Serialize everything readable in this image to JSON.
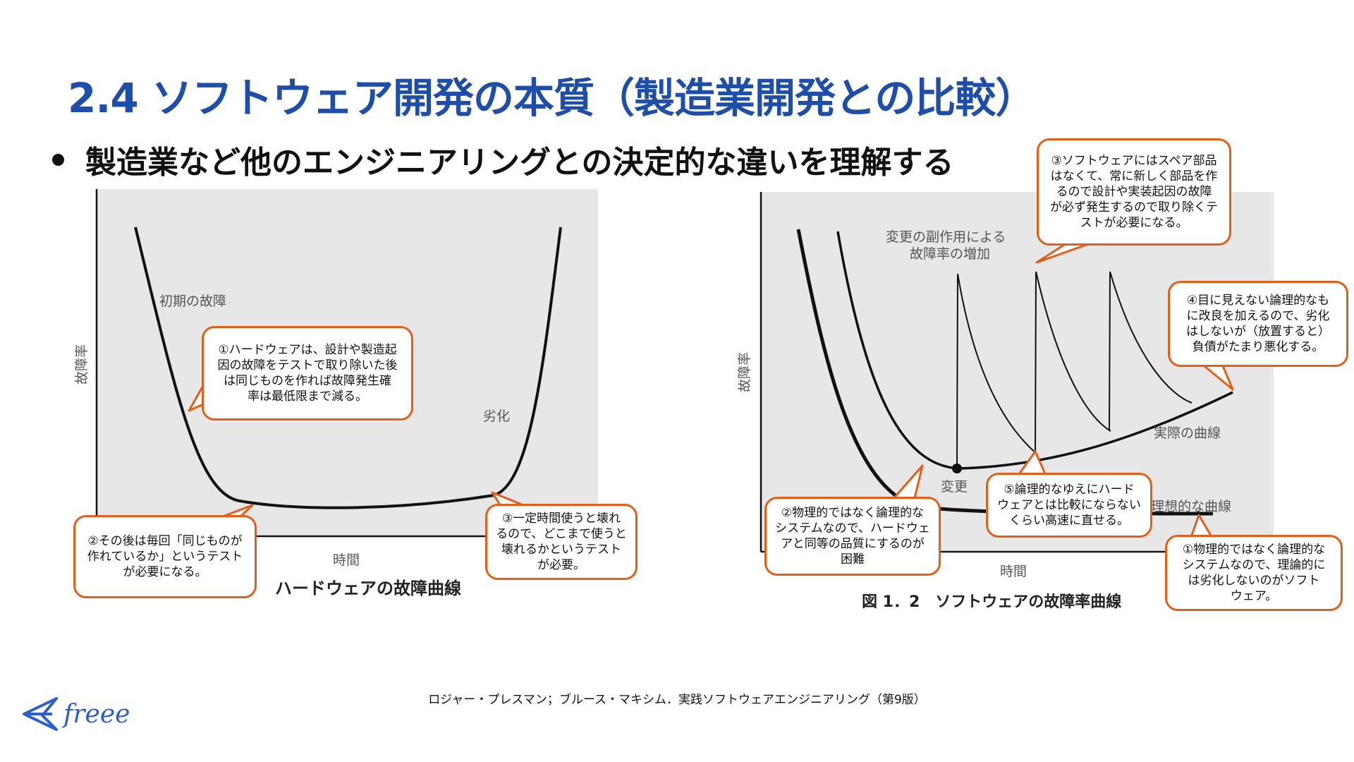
{
  "header": {
    "title": "2.4  ソフトウェア開発の本質（製造業開発との比較）",
    "bullet": "製造業など他のエンジニアリングとの決定的な違いを理解する"
  },
  "left_chart": {
    "caption": "ハードウェアの故障曲線",
    "ylabel": "故障率",
    "xlabel": "時間",
    "label_early": "初期の故障",
    "label_wear": "劣化"
  },
  "right_chart": {
    "caption": "図 1．2　ソフトウェアの故障率曲線",
    "ylabel": "故障率",
    "xlabel": "時間",
    "label_side_effect_1": "変更の副作用による",
    "label_side_effect_2": "故障率の増加",
    "label_change": "変更",
    "label_actual": "実際の曲線",
    "label_ideal": "理想的な曲線"
  },
  "callouts": {
    "hw1": "①ハードウェアは、設計や製造起\n因の故障をテストで取り除いた後\nは同じものを作れば故障発生確\n率は最低限まで減る。",
    "hw2": "②その後は毎回「同じものが\n作れているか」というテスト\nが必要になる。",
    "hw3": "③一定時間使うと壊れ\nるので、どこまで使うと\n壊れるかというテスト\nが必要。",
    "sw3": "③ソフトウェアにはスペア部品\nはなくて、常に新しく部品を作\nるので設計や実装起因の故障\nが必ず発生するので取り除くテ\nストが必要になる。",
    "sw4": "④目に見えない論理的なも\nに改良を加えるので、劣化\nはしないが（放置すると）\n負債がたまり悪化する。",
    "sw2": "②物理的ではなく論理的な\nシステムなので、ハードウェ\nアと同等の品質にするのが\n困難",
    "sw5": "⑤論理的なゆえにハード\nウェアとは比較にならない\nくらい高速に直せる。",
    "sw1": "①物理的ではなく論理的な\nシステムなので、理論的に\nは劣化しないのがソフト\nウェア。"
  },
  "footer": {
    "citation": "ロジャー・プレスマン；ブルース・マキシム．実践ソフトウェアエンジニアリング（第9版）",
    "logo": "freee"
  },
  "colors": {
    "title": "#1f4ea8",
    "callout_border": "#e0601a",
    "plot_bg": "#e7e7e7",
    "logo": "#2c5fcc"
  }
}
